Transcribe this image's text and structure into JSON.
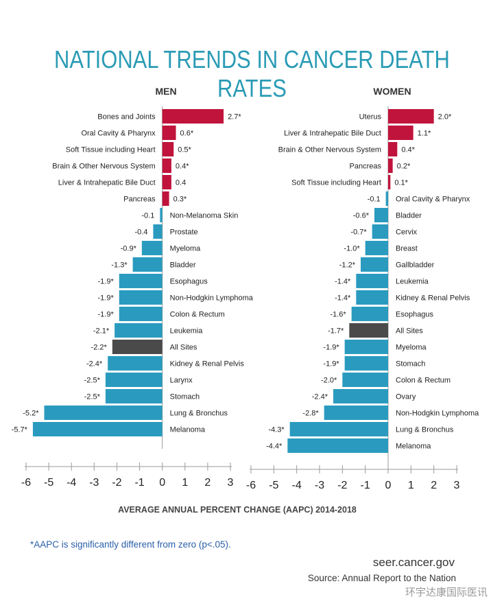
{
  "title": "NATIONAL TRENDS IN CANCER DEATH RATES",
  "xlabel": "AVERAGE ANNUAL PERCENT CHANGE (AAPC) 2014-2018",
  "footnote": "*AAPC is significantly different from zero (p<.05).",
  "site": "seer.cancer.gov",
  "source": "Source: Annual Report to the Nation",
  "watermark": "环宇达康国际医讯",
  "colors": {
    "increase": "#c0143c",
    "decrease": "#2a9bbf",
    "all_sites": "#4a4a4a",
    "title": "#2a9bb5"
  },
  "chart_data": [
    {
      "type": "bar",
      "orientation": "horizontal",
      "panel": "MEN",
      "xlim": [
        -6,
        3
      ],
      "xticks": [
        -6,
        -5,
        -4,
        -3,
        -2,
        -1,
        0,
        1,
        2,
        3
      ],
      "categories": [
        "Bones and Joints",
        "Oral Cavity & Pharynx",
        "Soft Tissue including Heart",
        "Brain & Other Nervous System",
        "Liver & Intrahepatic Bile Duct",
        "Pancreas",
        "Non-Melanoma Skin",
        "Prostate",
        "Myeloma",
        "Bladder",
        "Esophagus",
        "Non-Hodgkin Lymphoma",
        "Colon & Rectum",
        "Leukemia",
        "All Sites",
        "Kidney & Renal Pelvis",
        "Larynx",
        "Stomach",
        "Lung & Bronchus",
        "Melanoma"
      ],
      "values": [
        2.7,
        0.6,
        0.5,
        0.4,
        0.4,
        0.3,
        -0.1,
        -0.4,
        -0.9,
        -1.3,
        -1.9,
        -1.9,
        -1.9,
        -2.1,
        -2.2,
        -2.4,
        -2.5,
        -2.5,
        -5.2,
        -5.7
      ],
      "labels": [
        "2.7*",
        "0.6*",
        "0.5*",
        "0.4*",
        "0.4",
        "0.3*",
        "-0.1",
        "-0.4",
        "-0.9*",
        "-1.3*",
        "-1.9*",
        "-1.9*",
        "-1.9*",
        "-2.1*",
        "-2.2*",
        "-2.4*",
        "-2.5*",
        "-2.5*",
        "-5.2*",
        "-5.7*"
      ]
    },
    {
      "type": "bar",
      "orientation": "horizontal",
      "panel": "WOMEN",
      "xlim": [
        -6,
        3
      ],
      "xticks": [
        -6,
        -5,
        -4,
        -3,
        -2,
        -1,
        0,
        1,
        2,
        3
      ],
      "categories": [
        "Uterus",
        "Liver & Intrahepatic Bile Duct",
        "Brain & Other Nervous System",
        "Pancreas",
        "Soft Tissue including Heart",
        "Oral Cavity & Pharynx",
        "Bladder",
        "Cervix",
        "Breast",
        "Gallbladder",
        "Leukemia",
        "Kidney & Renal Pelvis",
        "Esophagus",
        "All Sites",
        "Myeloma",
        "Stomach",
        "Colon & Rectum",
        "Ovary",
        "Non-Hodgkin Lymphoma",
        "Lung & Bronchus",
        "Melanoma"
      ],
      "values": [
        2.0,
        1.1,
        0.4,
        0.2,
        0.1,
        -0.1,
        -0.6,
        -0.7,
        -1.0,
        -1.2,
        -1.4,
        -1.4,
        -1.6,
        -1.7,
        -1.9,
        -1.9,
        -2.0,
        -2.4,
        -2.8,
        -4.3,
        -4.4
      ],
      "labels": [
        "2.0*",
        "1.1*",
        "0.4*",
        "0.2*",
        "0.1*",
        "-0.1",
        "-0.6*",
        "-0.7*",
        "-1.0*",
        "-1.2*",
        "-1.4*",
        "-1.4*",
        "-1.6*",
        "-1.7*",
        "-1.9*",
        "-1.9*",
        "-2.0*",
        "-2.4*",
        "-2.8*",
        "-4.3*",
        "-4.4*"
      ]
    }
  ]
}
